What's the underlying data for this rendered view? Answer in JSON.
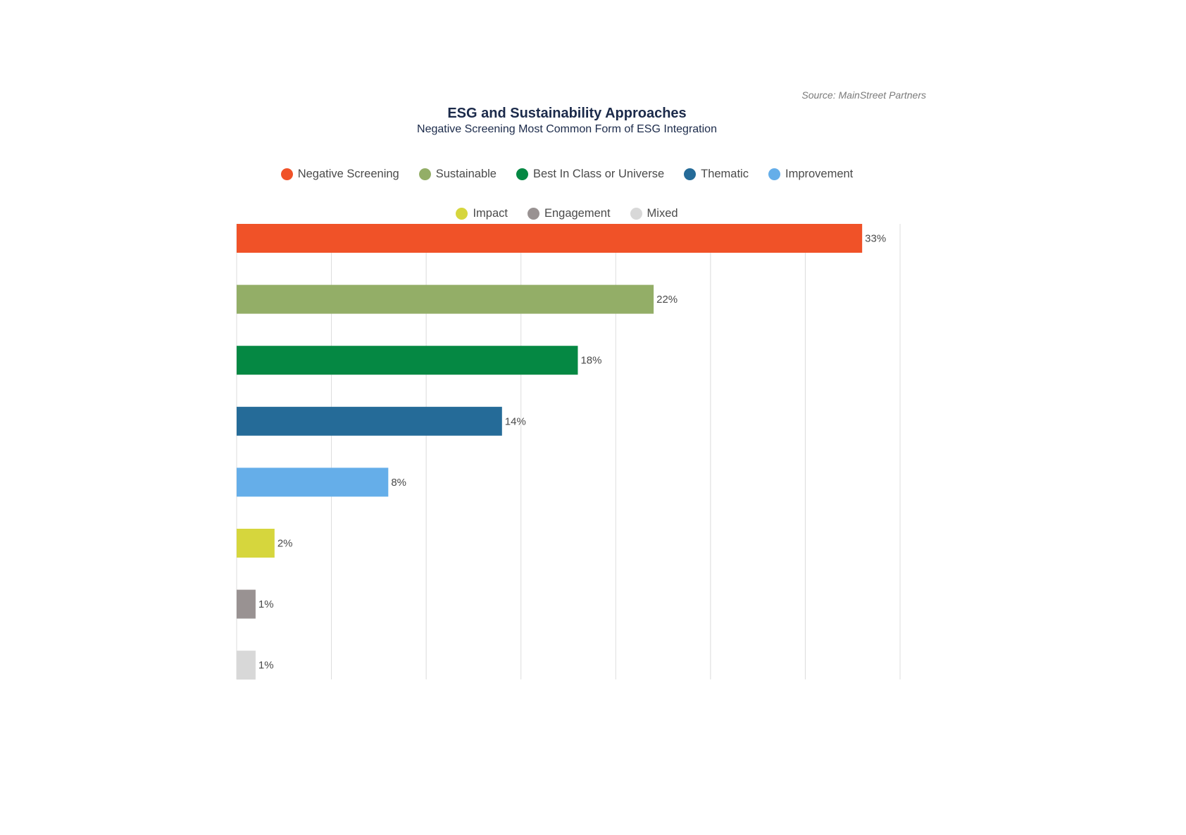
{
  "source": "Source: MainStreet Partners",
  "chart_data": {
    "type": "bar",
    "orientation": "horizontal",
    "title": "ESG and Sustainability Approaches",
    "subtitle": "Negative Screening Most Common Form of ESG Integration",
    "categories": [
      "Negative Screening",
      "Sustainable",
      "Best In Class or Universe",
      "Thematic",
      "Improvement",
      "Impact",
      "Engagement",
      "Mixed"
    ],
    "values": [
      33,
      22,
      18,
      14,
      8,
      2,
      1,
      1
    ],
    "data_labels": [
      "33%",
      "22%",
      "18%",
      "14%",
      "8%",
      "2%",
      "1%",
      "1%"
    ],
    "colors": [
      "#f05228",
      "#93ae67",
      "#058843",
      "#256b98",
      "#65aee9",
      "#d6d63d",
      "#999292",
      "#d8d8d8"
    ],
    "xlim": [
      0,
      35
    ],
    "grid": true,
    "legend_position": "top"
  }
}
